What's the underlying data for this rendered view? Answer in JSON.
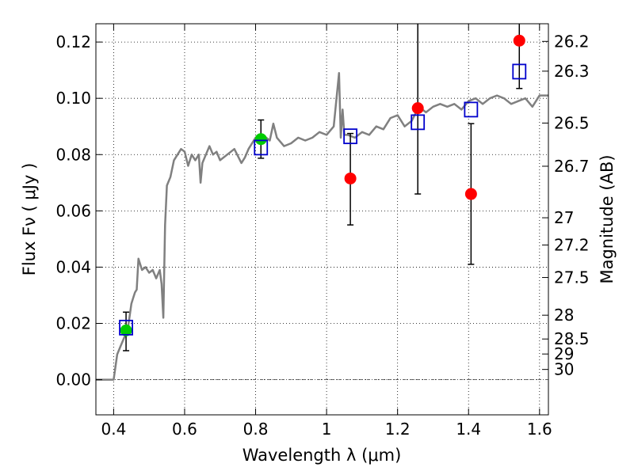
{
  "chart_data": {
    "type": "scatter",
    "xlabel": "Wavelength  λ (μm)",
    "ylabel": "Flux  Fν  ( μJy )",
    "y2label": "Magnitude (AB)",
    "xlim": [
      0.35,
      1.625
    ],
    "ylim": [
      -0.0125,
      0.1265
    ],
    "grid": true,
    "x_ticks": [
      {
        "value": 0.4,
        "label": "0.4"
      },
      {
        "value": 0.6,
        "label": "0.6"
      },
      {
        "value": 0.8,
        "label": "0.8"
      },
      {
        "value": 1.0,
        "label": "1"
      },
      {
        "value": 1.2,
        "label": "1.2"
      },
      {
        "value": 1.4,
        "label": "1.4"
      },
      {
        "value": 1.6,
        "label": "1.6"
      }
    ],
    "y_ticks": [
      {
        "value": 0.0,
        "label": "0.00"
      },
      {
        "value": 0.02,
        "label": "0.02"
      },
      {
        "value": 0.04,
        "label": "0.04"
      },
      {
        "value": 0.06,
        "label": "0.06"
      },
      {
        "value": 0.08,
        "label": "0.08"
      },
      {
        "value": 0.1,
        "label": "0.10"
      },
      {
        "value": 0.12,
        "label": "0.12"
      }
    ],
    "mag_ticks": [
      {
        "mag": 26.2,
        "label": "26.2"
      },
      {
        "mag": 26.3,
        "label": "26.3"
      },
      {
        "mag": 26.5,
        "label": "26.5"
      },
      {
        "mag": 26.7,
        "label": "26.7"
      },
      {
        "mag": 27.0,
        "label": "27"
      },
      {
        "mag": 27.2,
        "label": "27.2"
      },
      {
        "mag": 27.5,
        "label": "27.5"
      },
      {
        "mag": 28.0,
        "label": "28"
      },
      {
        "mag": 28.5,
        "label": "28.5"
      },
      {
        "mag": 29.0,
        "label": "29"
      },
      {
        "mag": 30.0,
        "label": "30"
      }
    ],
    "template_spectrum": {
      "color": "#808080",
      "x": [
        0.35,
        0.38,
        0.4,
        0.41,
        0.42,
        0.43,
        0.44,
        0.45,
        0.455,
        0.46,
        0.465,
        0.47,
        0.48,
        0.49,
        0.5,
        0.51,
        0.52,
        0.53,
        0.535,
        0.54,
        0.545,
        0.55,
        0.56,
        0.57,
        0.58,
        0.59,
        0.6,
        0.61,
        0.62,
        0.63,
        0.64,
        0.645,
        0.65,
        0.66,
        0.67,
        0.68,
        0.69,
        0.7,
        0.72,
        0.74,
        0.76,
        0.77,
        0.78,
        0.8,
        0.82,
        0.84,
        0.85,
        0.86,
        0.88,
        0.9,
        0.92,
        0.94,
        0.96,
        0.98,
        1.0,
        1.02,
        1.035,
        1.04,
        1.045,
        1.05,
        1.06,
        1.08,
        1.1,
        1.12,
        1.14,
        1.16,
        1.18,
        1.2,
        1.22,
        1.24,
        1.26,
        1.28,
        1.3,
        1.32,
        1.34,
        1.36,
        1.38,
        1.4,
        1.42,
        1.44,
        1.46,
        1.48,
        1.5,
        1.52,
        1.54,
        1.56,
        1.58,
        1.6,
        1.625
      ],
      "y": [
        0.0,
        0.0,
        0.0,
        0.009,
        0.012,
        0.015,
        0.018,
        0.027,
        0.029,
        0.031,
        0.032,
        0.043,
        0.039,
        0.04,
        0.038,
        0.039,
        0.036,
        0.039,
        0.034,
        0.022,
        0.055,
        0.069,
        0.072,
        0.078,
        0.08,
        0.082,
        0.081,
        0.076,
        0.08,
        0.078,
        0.08,
        0.07,
        0.077,
        0.08,
        0.083,
        0.08,
        0.081,
        0.078,
        0.08,
        0.082,
        0.077,
        0.079,
        0.082,
        0.086,
        0.087,
        0.085,
        0.091,
        0.086,
        0.083,
        0.084,
        0.086,
        0.085,
        0.086,
        0.088,
        0.087,
        0.09,
        0.109,
        0.086,
        0.096,
        0.087,
        0.087,
        0.086,
        0.088,
        0.087,
        0.09,
        0.089,
        0.093,
        0.094,
        0.09,
        0.092,
        0.097,
        0.095,
        0.097,
        0.098,
        0.097,
        0.098,
        0.096,
        0.099,
        0.1,
        0.098,
        0.1,
        0.101,
        0.1,
        0.098,
        0.099,
        0.1,
        0.097,
        0.101,
        0.101
      ]
    },
    "series": [
      {
        "marker": "circle",
        "color": "#00cc00",
        "x": [
          0.435,
          0.815
        ],
        "y": [
          0.0175,
          0.0855
        ],
        "err_low": [
          0.0072,
          0.0068
        ],
        "err_high": [
          0.0065,
          0.0068
        ]
      },
      {
        "marker": "circle",
        "color": "#ff0000",
        "x": [
          1.067,
          1.257,
          1.407,
          1.543
        ],
        "y": [
          0.0715,
          0.0965,
          0.066,
          0.1205
        ],
        "err_low": [
          0.0165,
          0.0305,
          0.025,
          0.017
        ],
        "err_high": [
          0.016,
          0.0305,
          0.025,
          0.017
        ]
      },
      {
        "marker": "open-square",
        "color": "#0000cc",
        "x": [
          0.435,
          0.815,
          1.067,
          1.257,
          1.407,
          1.543
        ],
        "y": [
          0.0185,
          0.0825,
          0.0865,
          0.0915,
          0.096,
          0.1095
        ]
      }
    ]
  }
}
